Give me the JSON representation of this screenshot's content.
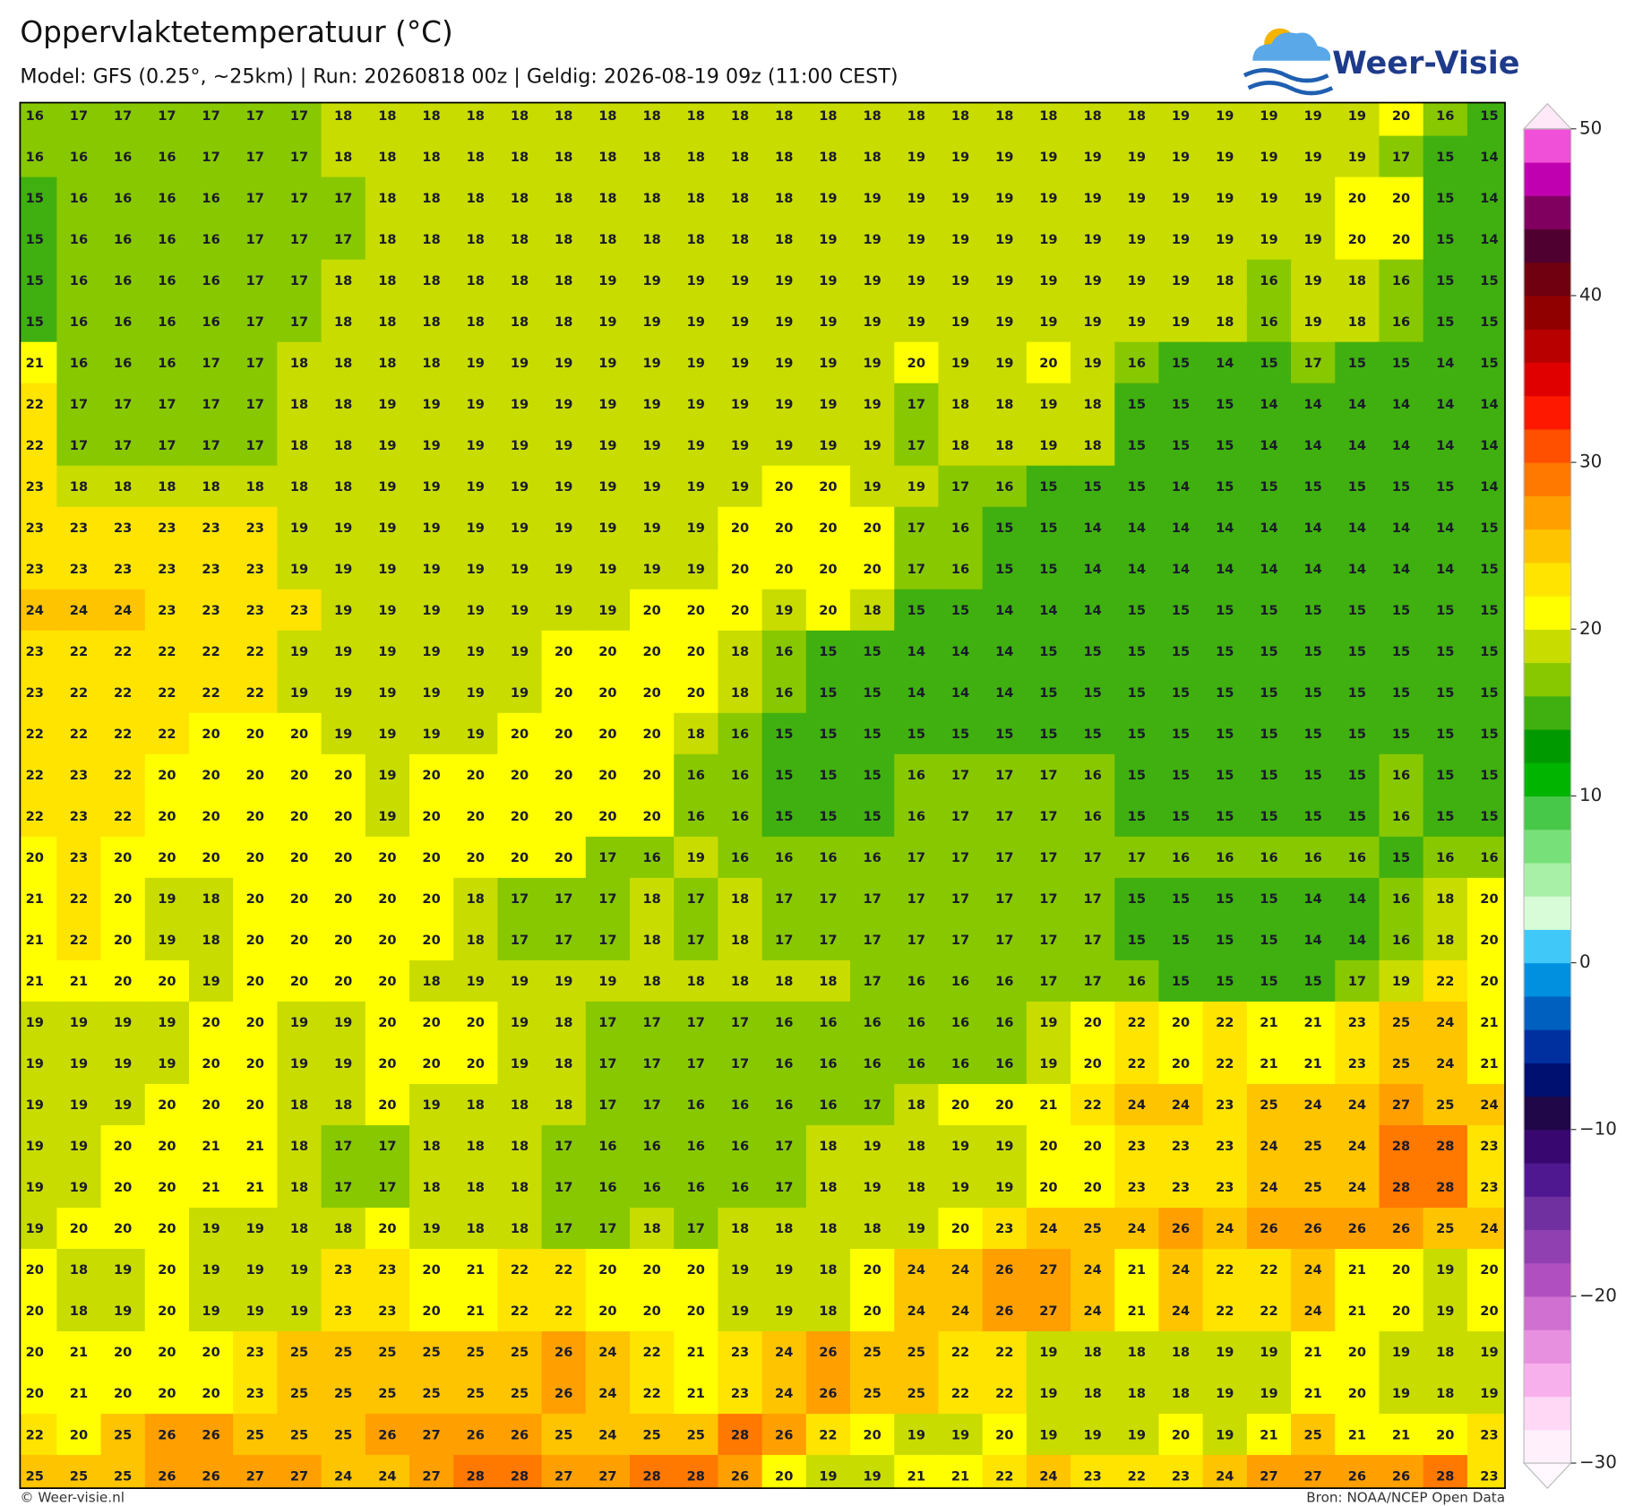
{
  "header": {
    "title": "Oppervlaktetemperatuur (°C)",
    "subtitle": "Model: GFS (0.25°, ~25km)  |  Run: 20260818 00z  |  Geldig: 2026-08-19 09z (11:00 CEST)",
    "logo": "Weer-Visie"
  },
  "footer": {
    "left": "© Weer-visie.nl",
    "right": "Bron: NOAA/NCEP Open Data"
  },
  "colorbar": {
    "min": -30,
    "max": 50,
    "step": 2,
    "colors": [
      "#fff0fc",
      "#ffd8f6",
      "#f8b0ec",
      "#e890e0",
      "#d070d0",
      "#b050c0",
      "#9040b0",
      "#7030a0",
      "#501890",
      "#380870",
      "#200848",
      "#001070",
      "#0030a0",
      "#0060c0",
      "#0090e0",
      "#40c8f8",
      "#d8fcd8",
      "#a8f0a8",
      "#78e078",
      "#48c848",
      "#00b400",
      "#009a00",
      "#40b010",
      "#88c800",
      "#c8dc00",
      "#ffff00",
      "#ffe400",
      "#ffc400",
      "#ffa000",
      "#ff7800",
      "#ff5000",
      "#ff1800",
      "#e00000",
      "#b80000",
      "#900000",
      "#700010",
      "#500030",
      "#800060",
      "#c000b0",
      "#f050d8"
    ],
    "ticks": [
      50,
      40,
      30,
      20,
      10,
      0,
      {
        "value": -10,
        "label": "−10"
      },
      {
        "value": -20,
        "label": "−20"
      },
      {
        "value": -30,
        "label": "−30"
      }
    ]
  },
  "grid": {
    "rows": [
      [
        16,
        17,
        17,
        17,
        17,
        17,
        17,
        18,
        18,
        18,
        18,
        18,
        18,
        18,
        18,
        18,
        18,
        18,
        18,
        18,
        18,
        18,
        18,
        18,
        18,
        18,
        19,
        19,
        19,
        19,
        19,
        20,
        16,
        15
      ],
      [
        16,
        16,
        16,
        16,
        17,
        17,
        17,
        18,
        18,
        18,
        18,
        18,
        18,
        18,
        18,
        18,
        18,
        18,
        18,
        18,
        19,
        19,
        19,
        19,
        19,
        19,
        19,
        19,
        19,
        19,
        19,
        17,
        15,
        14
      ],
      [
        15,
        16,
        16,
        16,
        16,
        17,
        17,
        17,
        18,
        18,
        18,
        18,
        18,
        18,
        18,
        18,
        18,
        18,
        19,
        19,
        19,
        19,
        19,
        19,
        19,
        19,
        19,
        19,
        19,
        19,
        20,
        20,
        15,
        14
      ],
      [
        15,
        16,
        16,
        16,
        16,
        17,
        17,
        17,
        18,
        18,
        18,
        18,
        18,
        18,
        18,
        18,
        18,
        18,
        19,
        19,
        19,
        19,
        19,
        19,
        19,
        19,
        19,
        19,
        19,
        19,
        20,
        20,
        15,
        14
      ],
      [
        15,
        16,
        16,
        16,
        16,
        17,
        17,
        18,
        18,
        18,
        18,
        18,
        18,
        19,
        19,
        19,
        19,
        19,
        19,
        19,
        19,
        19,
        19,
        19,
        19,
        19,
        19,
        18,
        16,
        19,
        18,
        16,
        15,
        15
      ],
      [
        15,
        16,
        16,
        16,
        16,
        17,
        17,
        18,
        18,
        18,
        18,
        18,
        18,
        19,
        19,
        19,
        19,
        19,
        19,
        19,
        19,
        19,
        19,
        19,
        19,
        19,
        19,
        18,
        16,
        19,
        18,
        16,
        15,
        15
      ],
      [
        21,
        16,
        16,
        16,
        17,
        17,
        18,
        18,
        18,
        18,
        19,
        19,
        19,
        19,
        19,
        19,
        19,
        19,
        19,
        19,
        20,
        19,
        19,
        20,
        19,
        16,
        15,
        14,
        15,
        17,
        15,
        15,
        14,
        15
      ],
      [
        22,
        17,
        17,
        17,
        17,
        17,
        18,
        18,
        19,
        19,
        19,
        19,
        19,
        19,
        19,
        19,
        19,
        19,
        19,
        19,
        17,
        18,
        18,
        19,
        18,
        15,
        15,
        15,
        14,
        14,
        14,
        14,
        14,
        14
      ],
      [
        22,
        17,
        17,
        17,
        17,
        17,
        18,
        18,
        19,
        19,
        19,
        19,
        19,
        19,
        19,
        19,
        19,
        19,
        19,
        19,
        17,
        18,
        18,
        19,
        18,
        15,
        15,
        15,
        14,
        14,
        14,
        14,
        14,
        14
      ],
      [
        23,
        18,
        18,
        18,
        18,
        18,
        18,
        18,
        19,
        19,
        19,
        19,
        19,
        19,
        19,
        19,
        19,
        20,
        20,
        19,
        19,
        17,
        16,
        15,
        15,
        15,
        14,
        15,
        15,
        15,
        15,
        15,
        15,
        14
      ],
      [
        23,
        23,
        23,
        23,
        23,
        23,
        19,
        19,
        19,
        19,
        19,
        19,
        19,
        19,
        19,
        19,
        20,
        20,
        20,
        20,
        17,
        16,
        15,
        15,
        14,
        14,
        14,
        14,
        14,
        14,
        14,
        14,
        14,
        15
      ],
      [
        23,
        23,
        23,
        23,
        23,
        23,
        19,
        19,
        19,
        19,
        19,
        19,
        19,
        19,
        19,
        19,
        20,
        20,
        20,
        20,
        17,
        16,
        15,
        15,
        14,
        14,
        14,
        14,
        14,
        14,
        14,
        14,
        14,
        15
      ],
      [
        24,
        24,
        24,
        23,
        23,
        23,
        23,
        19,
        19,
        19,
        19,
        19,
        19,
        19,
        20,
        20,
        20,
        19,
        20,
        18,
        15,
        15,
        14,
        14,
        14,
        15,
        15,
        15,
        15,
        15,
        15,
        15,
        15,
        15
      ],
      [
        23,
        22,
        22,
        22,
        22,
        22,
        19,
        19,
        19,
        19,
        19,
        19,
        20,
        20,
        20,
        20,
        18,
        16,
        15,
        15,
        14,
        14,
        14,
        15,
        15,
        15,
        15,
        15,
        15,
        15,
        15,
        15,
        15,
        15
      ],
      [
        23,
        22,
        22,
        22,
        22,
        22,
        19,
        19,
        19,
        19,
        19,
        19,
        20,
        20,
        20,
        20,
        18,
        16,
        15,
        15,
        14,
        14,
        14,
        15,
        15,
        15,
        15,
        15,
        15,
        15,
        15,
        15,
        15,
        15
      ],
      [
        22,
        22,
        22,
        22,
        20,
        20,
        20,
        19,
        19,
        19,
        19,
        20,
        20,
        20,
        20,
        18,
        16,
        15,
        15,
        15,
        15,
        15,
        15,
        15,
        15,
        15,
        15,
        15,
        15,
        15,
        15,
        15,
        15,
        15
      ],
      [
        22,
        23,
        22,
        20,
        20,
        20,
        20,
        20,
        19,
        20,
        20,
        20,
        20,
        20,
        20,
        16,
        16,
        15,
        15,
        15,
        16,
        17,
        17,
        17,
        16,
        15,
        15,
        15,
        15,
        15,
        15,
        16,
        15,
        15
      ],
      [
        22,
        23,
        22,
        20,
        20,
        20,
        20,
        20,
        19,
        20,
        20,
        20,
        20,
        20,
        20,
        16,
        16,
        15,
        15,
        15,
        16,
        17,
        17,
        17,
        16,
        15,
        15,
        15,
        15,
        15,
        15,
        16,
        15,
        15
      ],
      [
        20,
        23,
        20,
        20,
        20,
        20,
        20,
        20,
        20,
        20,
        20,
        20,
        20,
        17,
        16,
        19,
        16,
        16,
        16,
        16,
        17,
        17,
        17,
        17,
        17,
        17,
        16,
        16,
        16,
        16,
        16,
        15,
        16,
        16
      ],
      [
        21,
        22,
        20,
        19,
        18,
        20,
        20,
        20,
        20,
        20,
        18,
        17,
        17,
        17,
        18,
        17,
        18,
        17,
        17,
        17,
        17,
        17,
        17,
        17,
        17,
        15,
        15,
        15,
        15,
        14,
        14,
        16,
        18,
        20
      ],
      [
        21,
        22,
        20,
        19,
        18,
        20,
        20,
        20,
        20,
        20,
        18,
        17,
        17,
        17,
        18,
        17,
        18,
        17,
        17,
        17,
        17,
        17,
        17,
        17,
        17,
        15,
        15,
        15,
        15,
        14,
        14,
        16,
        18,
        20
      ],
      [
        21,
        21,
        20,
        20,
        19,
        20,
        20,
        20,
        20,
        18,
        19,
        19,
        19,
        19,
        18,
        18,
        18,
        18,
        18,
        17,
        16,
        16,
        16,
        17,
        17,
        16,
        15,
        15,
        15,
        15,
        17,
        19,
        22,
        20
      ],
      [
        19,
        19,
        19,
        19,
        20,
        20,
        19,
        19,
        20,
        20,
        20,
        19,
        18,
        17,
        17,
        17,
        17,
        16,
        16,
        16,
        16,
        16,
        16,
        19,
        20,
        22,
        20,
        22,
        21,
        21,
        23,
        25,
        24,
        21
      ],
      [
        19,
        19,
        19,
        19,
        20,
        20,
        19,
        19,
        20,
        20,
        20,
        19,
        18,
        17,
        17,
        17,
        17,
        16,
        16,
        16,
        16,
        16,
        16,
        19,
        20,
        22,
        20,
        22,
        21,
        21,
        23,
        25,
        24,
        21
      ],
      [
        19,
        19,
        19,
        20,
        20,
        20,
        18,
        18,
        20,
        19,
        18,
        18,
        18,
        17,
        17,
        16,
        16,
        16,
        16,
        17,
        18,
        20,
        20,
        21,
        22,
        24,
        24,
        23,
        25,
        24,
        24,
        27,
        25,
        24
      ],
      [
        19,
        19,
        20,
        20,
        21,
        21,
        18,
        17,
        17,
        18,
        18,
        18,
        17,
        16,
        16,
        16,
        16,
        17,
        18,
        19,
        18,
        19,
        19,
        20,
        20,
        23,
        23,
        23,
        24,
        25,
        24,
        28,
        28,
        23
      ],
      [
        19,
        19,
        20,
        20,
        21,
        21,
        18,
        17,
        17,
        18,
        18,
        18,
        17,
        16,
        16,
        16,
        16,
        17,
        18,
        19,
        18,
        19,
        19,
        20,
        20,
        23,
        23,
        23,
        24,
        25,
        24,
        28,
        28,
        23
      ],
      [
        19,
        20,
        20,
        20,
        19,
        19,
        18,
        18,
        20,
        19,
        18,
        18,
        17,
        17,
        18,
        17,
        18,
        18,
        18,
        18,
        19,
        20,
        23,
        24,
        25,
        24,
        26,
        24,
        26,
        26,
        26,
        26,
        25,
        24
      ],
      [
        20,
        18,
        19,
        20,
        19,
        19,
        19,
        23,
        23,
        20,
        21,
        22,
        22,
        20,
        20,
        20,
        19,
        19,
        18,
        20,
        24,
        24,
        26,
        27,
        24,
        21,
        24,
        22,
        22,
        24,
        21,
        20,
        19,
        20
      ],
      [
        20,
        18,
        19,
        20,
        19,
        19,
        19,
        23,
        23,
        20,
        21,
        22,
        22,
        20,
        20,
        20,
        19,
        19,
        18,
        20,
        24,
        24,
        26,
        27,
        24,
        21,
        24,
        22,
        22,
        24,
        21,
        20,
        19,
        20
      ],
      [
        20,
        21,
        20,
        20,
        20,
        23,
        25,
        25,
        25,
        25,
        25,
        25,
        26,
        24,
        22,
        21,
        23,
        24,
        26,
        25,
        25,
        22,
        22,
        19,
        18,
        18,
        18,
        19,
        19,
        21,
        20,
        19,
        18,
        19
      ],
      [
        20,
        21,
        20,
        20,
        20,
        23,
        25,
        25,
        25,
        25,
        25,
        25,
        26,
        24,
        22,
        21,
        23,
        24,
        26,
        25,
        25,
        22,
        22,
        19,
        18,
        18,
        18,
        19,
        19,
        21,
        20,
        19,
        18,
        19
      ],
      [
        22,
        20,
        25,
        26,
        26,
        25,
        25,
        25,
        26,
        27,
        26,
        26,
        25,
        24,
        25,
        25,
        28,
        26,
        22,
        20,
        19,
        19,
        20,
        19,
        19,
        19,
        20,
        19,
        21,
        25,
        21,
        21,
        20,
        23
      ],
      [
        25,
        25,
        25,
        26,
        26,
        27,
        27,
        24,
        24,
        27,
        28,
        28,
        27,
        27,
        28,
        28,
        26,
        20,
        19,
        19,
        21,
        21,
        22,
        24,
        23,
        22,
        23,
        24,
        27,
        27,
        26,
        26,
        28,
        23
      ]
    ]
  }
}
